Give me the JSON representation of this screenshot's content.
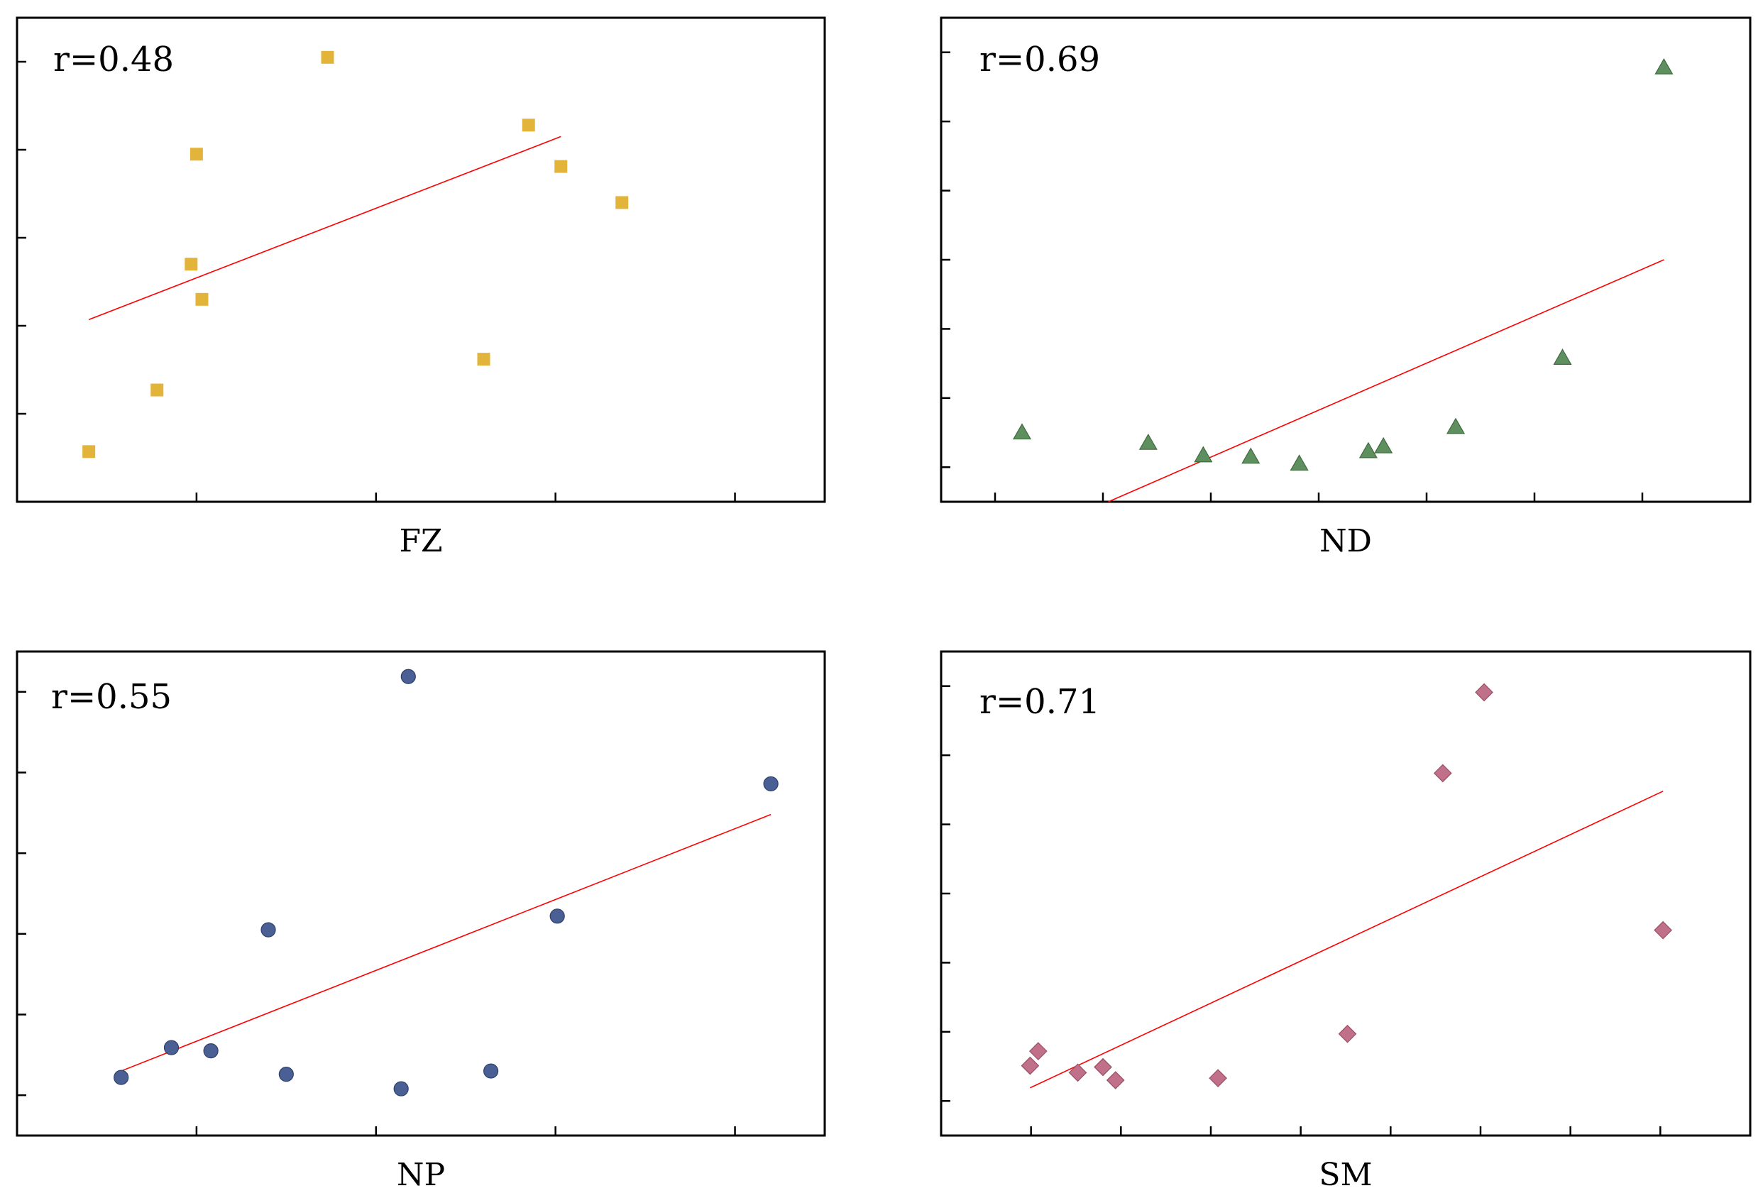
{
  "chart_data": [
    {
      "type": "scatter",
      "id": "fz",
      "xlabel": "FZ",
      "annotation": "r=0.48",
      "marker": "square",
      "color": "#e3b43a",
      "xlim": [
        0,
        4.5
      ],
      "ylim": [
        0,
        5.5
      ],
      "xticks": [
        1,
        2,
        3,
        4
      ],
      "yticks": [
        1,
        2,
        3,
        4,
        5
      ],
      "points": [
        {
          "x": 0.4,
          "y": 0.57
        },
        {
          "x": 0.78,
          "y": 1.27
        },
        {
          "x": 0.97,
          "y": 2.7
        },
        {
          "x": 1.0,
          "y": 3.95
        },
        {
          "x": 1.03,
          "y": 2.3
        },
        {
          "x": 1.73,
          "y": 5.05
        },
        {
          "x": 2.6,
          "y": 1.62
        },
        {
          "x": 2.85,
          "y": 4.28
        },
        {
          "x": 3.37,
          "y": 3.4
        },
        {
          "x": 3.03,
          "y": 3.81
        }
      ],
      "fit_line": [
        {
          "x": 0.4,
          "y": 2.07
        },
        {
          "x": 3.03,
          "y": 4.15
        }
      ]
    },
    {
      "type": "scatter",
      "id": "nd",
      "xlabel": "ND",
      "annotation": "r=0.69",
      "marker": "triangle",
      "color": "#5e8f5e",
      "xlim": [
        0,
        7.5
      ],
      "ylim": [
        -0.5,
        6.5
      ],
      "xticks": [
        0.5,
        1.5,
        2.5,
        3.5,
        4.5,
        5.5,
        6.5
      ],
      "yticks": [
        0,
        1,
        2,
        3,
        4,
        5,
        6
      ],
      "points": [
        {
          "x": 0.75,
          "y": 0.5
        },
        {
          "x": 1.92,
          "y": 0.35
        },
        {
          "x": 2.43,
          "y": 0.17
        },
        {
          "x": 2.87,
          "y": 0.15
        },
        {
          "x": 3.32,
          "y": 0.05
        },
        {
          "x": 3.96,
          "y": 0.23
        },
        {
          "x": 4.1,
          "y": 0.3
        },
        {
          "x": 4.77,
          "y": 0.58
        },
        {
          "x": 5.76,
          "y": 1.58
        },
        {
          "x": 6.7,
          "y": 5.78
        }
      ],
      "fit_line": [
        {
          "x": 1.55,
          "y": -0.5
        },
        {
          "x": 6.7,
          "y": 3.0
        }
      ]
    },
    {
      "type": "scatter",
      "id": "np",
      "xlabel": "NP",
      "annotation": "r=0.55",
      "marker": "circle",
      "color": "#4a5f94",
      "xlim": [
        0,
        4.5
      ],
      "ylim": [
        -0.5,
        5.5
      ],
      "xticks": [
        1,
        2,
        3,
        4
      ],
      "yticks": [
        0,
        1,
        2,
        3,
        4,
        5
      ],
      "points": [
        {
          "x": 0.58,
          "y": 0.22
        },
        {
          "x": 0.86,
          "y": 0.59
        },
        {
          "x": 1.08,
          "y": 0.55
        },
        {
          "x": 1.4,
          "y": 2.05
        },
        {
          "x": 1.5,
          "y": 0.26
        },
        {
          "x": 2.14,
          "y": 0.08
        },
        {
          "x": 2.18,
          "y": 5.19
        },
        {
          "x": 2.64,
          "y": 0.3
        },
        {
          "x": 3.01,
          "y": 2.22
        },
        {
          "x": 4.2,
          "y": 3.86
        }
      ],
      "fit_line": [
        {
          "x": 0.58,
          "y": 0.3
        },
        {
          "x": 4.2,
          "y": 3.48
        }
      ]
    },
    {
      "type": "scatter",
      "id": "sm",
      "xlabel": "SM",
      "annotation": "r=0.71",
      "marker": "diamond",
      "color": "#c07088",
      "xlim": [
        0,
        9
      ],
      "ylim": [
        -0.5,
        6.5
      ],
      "xticks": [
        1,
        2,
        3,
        4,
        5,
        6,
        7,
        8
      ],
      "yticks": [
        0,
        1,
        2,
        3,
        4,
        5,
        6
      ],
      "points": [
        {
          "x": 0.99,
          "y": 0.51
        },
        {
          "x": 1.08,
          "y": 0.72
        },
        {
          "x": 1.52,
          "y": 0.41
        },
        {
          "x": 1.8,
          "y": 0.49
        },
        {
          "x": 1.94,
          "y": 0.3
        },
        {
          "x": 3.08,
          "y": 0.33
        },
        {
          "x": 4.52,
          "y": 0.97
        },
        {
          "x": 5.58,
          "y": 4.74
        },
        {
          "x": 6.04,
          "y": 5.91
        },
        {
          "x": 8.03,
          "y": 2.47
        }
      ],
      "fit_line": [
        {
          "x": 0.99,
          "y": 0.19
        },
        {
          "x": 8.03,
          "y": 4.48
        }
      ]
    }
  ]
}
